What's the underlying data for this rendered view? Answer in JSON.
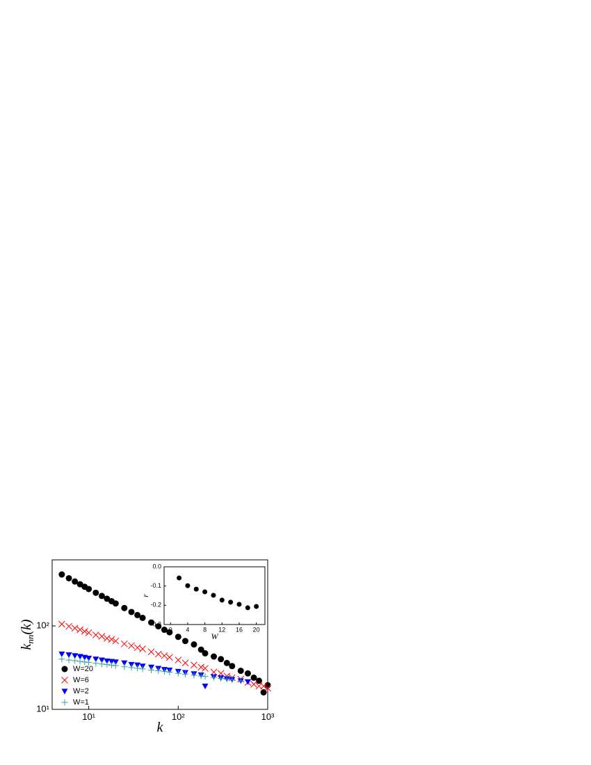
{
  "chart_data": [
    {
      "type": "scatter",
      "xscale": "log",
      "yscale": "log",
      "xlabel": "k",
      "ylabel": {
        "main": "k",
        "sub": "nn",
        "tail": "(k)"
      },
      "xlim": [
        3.9,
        1000
      ],
      "ylim": [
        10,
        620
      ],
      "xticks": [
        {
          "value": 10,
          "label": "10¹"
        },
        {
          "value": 100,
          "label": "10²"
        },
        {
          "value": 1000,
          "label": "10³"
        }
      ],
      "yticks": [
        {
          "value": 10,
          "label": "10¹"
        },
        {
          "value": 100,
          "label": "10²"
        }
      ],
      "legend": "lower left",
      "series": [
        {
          "name": "W=20",
          "color": "#000000",
          "marker": "circle",
          "x": [
            5,
            6,
            7,
            8,
            9,
            10,
            12,
            14,
            16,
            18,
            20,
            25,
            30,
            35,
            40,
            50,
            60,
            70,
            80,
            100,
            120,
            150,
            180,
            200,
            250,
            300,
            350,
            400,
            500,
            600,
            700,
            800,
            900,
            1000
          ],
          "values": [
            414,
            373,
            341,
            316,
            295,
            277,
            250,
            229,
            212,
            198,
            186,
            164,
            147,
            135,
            125,
            110,
            99,
            90,
            84,
            74,
            66,
            60,
            52,
            47,
            43,
            40,
            36,
            33,
            29,
            27,
            24,
            22,
            16,
            19.5
          ]
        },
        {
          "name": "W=6",
          "color": "#ff0000",
          "marker": "x",
          "x": [
            5,
            6,
            7,
            8,
            9,
            10,
            12,
            14,
            16,
            18,
            20,
            25,
            30,
            35,
            40,
            50,
            60,
            70,
            80,
            100,
            120,
            150,
            180,
            200,
            250,
            300,
            350,
            400,
            500,
            600,
            700,
            800,
            900,
            1000
          ],
          "values": [
            105,
            99,
            94,
            90,
            86,
            83,
            78,
            75,
            71,
            69,
            66,
            61,
            58,
            55,
            53,
            49,
            46,
            44,
            42,
            39,
            36,
            34,
            32,
            31,
            28,
            27,
            25,
            24,
            23,
            21,
            20,
            19,
            19,
            18
          ]
        },
        {
          "name": "W=2",
          "color": "#0000ff",
          "marker": "triangle",
          "x": [
            5,
            6,
            7,
            8,
            9,
            10,
            12,
            14,
            16,
            18,
            20,
            25,
            30,
            35,
            40,
            50,
            60,
            70,
            80,
            100,
            120,
            150,
            180,
            200,
            250,
            300,
            350,
            400,
            500,
            600
          ],
          "values": [
            46,
            45,
            44,
            43,
            42,
            41,
            40,
            39,
            38,
            37.5,
            37,
            36,
            34.5,
            34,
            33,
            32,
            31,
            30,
            29.5,
            28.5,
            27.6,
            26.7,
            25.9,
            19,
            24.6,
            23.9,
            23.3,
            22.8,
            22,
            21.4
          ]
        },
        {
          "name": "W=1",
          "color": "#33a0a0",
          "marker": "plus",
          "x": [
            5,
            6,
            7,
            8,
            9,
            10,
            12,
            14,
            16,
            18,
            20,
            25,
            30,
            35,
            40,
            50,
            60,
            70,
            80,
            100,
            120,
            150,
            180,
            200,
            250,
            300,
            350,
            400,
            500
          ],
          "values": [
            40,
            39,
            38.3,
            37.6,
            37,
            36.6,
            35.7,
            35,
            34.4,
            33.9,
            33.4,
            32.4,
            31.7,
            31,
            30.5,
            29.6,
            29,
            28.4,
            27.9,
            27,
            26.4,
            25.7,
            25.1,
            24.8,
            24.1,
            23.5,
            23,
            22.7,
            22
          ]
        }
      ]
    },
    {
      "type": "scatter",
      "xlabel": "W",
      "ylabel": "r",
      "xlim": [
        -1.5,
        22
      ],
      "ylim": [
        -0.3,
        0
      ],
      "xticks": [
        0,
        4,
        8,
        12,
        16,
        20
      ],
      "yticks": [
        {
          "value": 0,
          "label": "0.0"
        },
        {
          "value": -0.1,
          "label": "-0.1"
        },
        {
          "value": -0.2,
          "label": "-0.2"
        },
        {
          "value": -0.3,
          "label": "-0.3"
        }
      ],
      "series": [
        {
          "color": "#000000",
          "marker": "circle",
          "x": [
            2,
            4,
            6,
            8,
            10,
            12,
            14,
            16,
            18,
            20
          ],
          "values": [
            -0.058,
            -0.098,
            -0.116,
            -0.13,
            -0.148,
            -0.173,
            -0.184,
            -0.195,
            -0.213,
            -0.206
          ]
        }
      ]
    }
  ]
}
